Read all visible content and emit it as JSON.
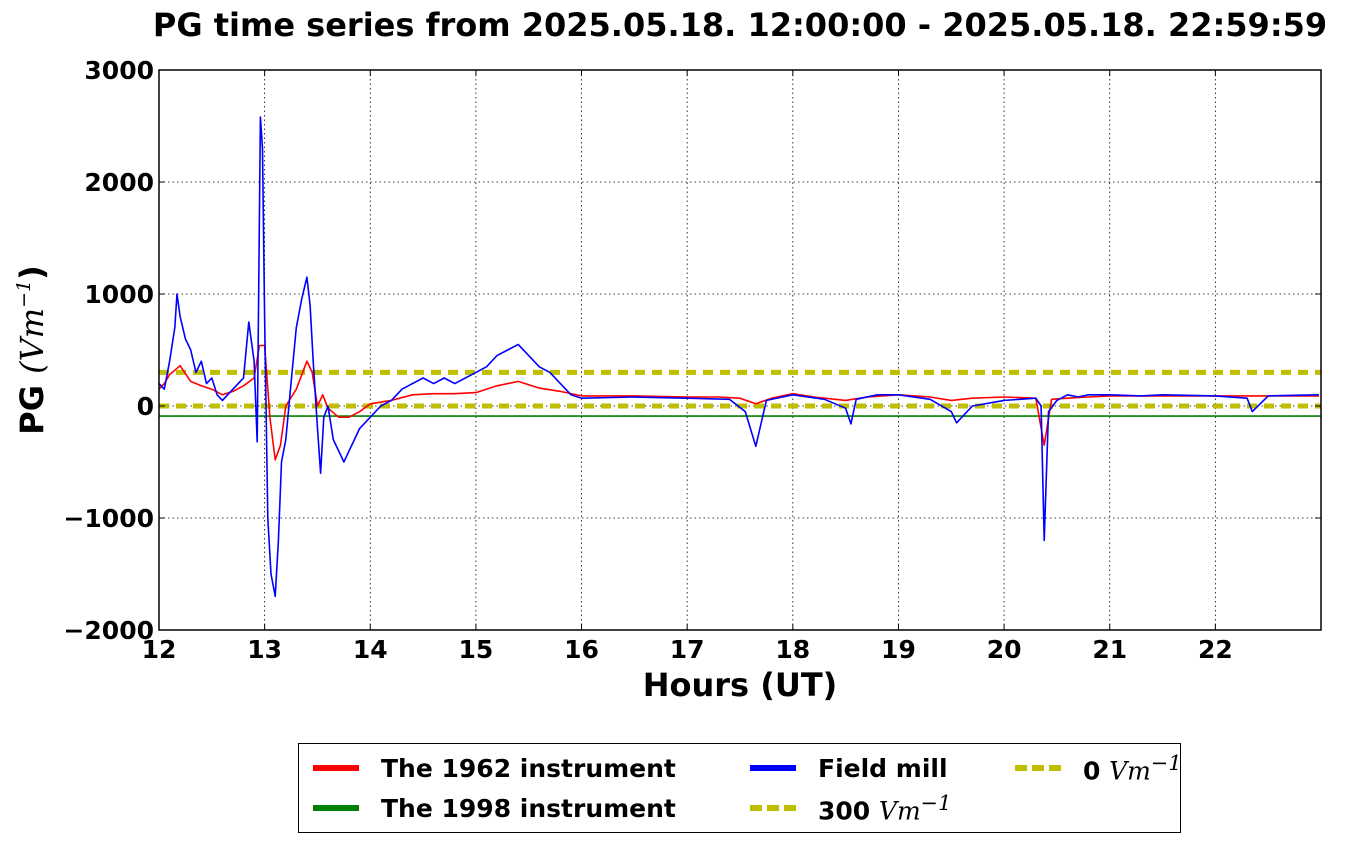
{
  "chart_data": {
    "type": "line",
    "title": "PG time series from 2025.05.18. 12:00:00 - 2025.05.18. 22:59:59",
    "xlabel": "Hours (UT)",
    "ylabel": "PG",
    "ylabel_unit": "(Vm",
    "ylabel_unit_exp": "−1",
    "ylabel_unit_close": ")",
    "xlim": [
      12,
      23
    ],
    "ylim": [
      -2000,
      3000
    ],
    "grid": true,
    "legend_position": "bottom-center-outside",
    "x_ticks": [
      12,
      13,
      14,
      15,
      16,
      17,
      18,
      19,
      20,
      21,
      22
    ],
    "y_ticks": [
      -2000,
      -1000,
      0,
      1000,
      2000,
      3000
    ],
    "y_tick_labels": [
      "−2000",
      "−1000",
      "0",
      "1000",
      "2000",
      "3000"
    ],
    "series": [
      {
        "name": "The 1962 instrument",
        "color": "#ff0000",
        "style": "solid",
        "x": [
          12.0,
          12.05,
          12.1,
          12.15,
          12.2,
          12.3,
          12.4,
          12.5,
          12.6,
          12.7,
          12.8,
          12.9,
          12.95,
          13.0,
          13.05,
          13.1,
          13.15,
          13.2,
          13.3,
          13.4,
          13.45,
          13.5,
          13.55,
          13.6,
          13.7,
          13.8,
          13.9,
          14.0,
          14.2,
          14.4,
          14.6,
          14.8,
          15.0,
          15.2,
          15.4,
          15.6,
          15.8,
          16.0,
          16.5,
          17.0,
          17.3,
          17.5,
          17.65,
          17.8,
          18.0,
          18.2,
          18.5,
          18.7,
          19.0,
          19.3,
          19.5,
          19.7,
          20.0,
          20.3,
          20.38,
          20.45,
          20.6,
          20.8,
          21.0,
          21.5,
          22.0,
          22.5,
          22.98
        ],
        "values": [
          150,
          200,
          280,
          320,
          360,
          220,
          180,
          150,
          100,
          130,
          180,
          250,
          540,
          540,
          -100,
          -480,
          -350,
          0,
          150,
          400,
          300,
          0,
          100,
          -20,
          -100,
          -100,
          -50,
          20,
          50,
          100,
          110,
          110,
          120,
          180,
          220,
          160,
          130,
          90,
          90,
          80,
          80,
          70,
          20,
          70,
          110,
          80,
          50,
          80,
          100,
          80,
          50,
          70,
          80,
          70,
          -350,
          60,
          70,
          80,
          90,
          90,
          90,
          90,
          90
        ]
      },
      {
        "name": "The 1998 instrument",
        "color": "#008000",
        "style": "solid",
        "x": [
          12,
          23
        ],
        "values": [
          -90,
          -90
        ]
      },
      {
        "name": "Field mill",
        "color": "#0000ff",
        "style": "solid",
        "x": [
          12.0,
          12.05,
          12.1,
          12.15,
          12.17,
          12.2,
          12.25,
          12.3,
          12.35,
          12.4,
          12.45,
          12.5,
          12.55,
          12.6,
          12.7,
          12.8,
          12.85,
          12.9,
          12.93,
          12.96,
          12.98,
          13.0,
          13.03,
          13.06,
          13.1,
          13.13,
          13.16,
          13.2,
          13.25,
          13.3,
          13.35,
          13.4,
          13.43,
          13.46,
          13.5,
          13.53,
          13.56,
          13.6,
          13.65,
          13.7,
          13.75,
          13.8,
          13.85,
          13.9,
          14.0,
          14.1,
          14.2,
          14.3,
          14.4,
          14.5,
          14.6,
          14.7,
          14.8,
          15.0,
          15.1,
          15.2,
          15.3,
          15.4,
          15.5,
          15.6,
          15.7,
          15.8,
          15.9,
          16.0,
          16.5,
          17.0,
          17.4,
          17.55,
          17.65,
          17.75,
          18.0,
          18.3,
          18.5,
          18.55,
          18.6,
          18.8,
          19.0,
          19.3,
          19.5,
          19.55,
          19.7,
          20.0,
          20.3,
          20.35,
          20.38,
          20.42,
          20.5,
          20.6,
          20.7,
          20.8,
          21.0,
          21.3,
          21.5,
          22.0,
          22.3,
          22.35,
          22.5,
          22.98
        ],
        "values": [
          200,
          150,
          400,
          700,
          1000,
          800,
          600,
          500,
          300,
          400,
          200,
          250,
          100,
          50,
          150,
          250,
          750,
          400,
          -320,
          2580,
          2300,
          800,
          -1000,
          -1500,
          -1700,
          -1200,
          -500,
          -300,
          200,
          700,
          950,
          1150,
          900,
          400,
          -200,
          -600,
          -100,
          0,
          -300,
          -400,
          -500,
          -400,
          -300,
          -200,
          -100,
          0,
          50,
          150,
          200,
          250,
          200,
          250,
          200,
          300,
          350,
          450,
          500,
          550,
          450,
          350,
          300,
          200,
          100,
          70,
          80,
          70,
          60,
          -50,
          -360,
          50,
          100,
          60,
          -20,
          -160,
          60,
          100,
          100,
          60,
          -50,
          -150,
          0,
          50,
          70,
          0,
          -1200,
          -50,
          50,
          100,
          80,
          100,
          100,
          90,
          100,
          90,
          70,
          -50,
          90,
          100
        ]
      },
      {
        "name": "300 Vm",
        "color": "#bfbf00",
        "style": "dashed",
        "x": [
          12,
          23
        ],
        "values": [
          300,
          300
        ]
      },
      {
        "name": "0 Vm",
        "color": "#bfbf00",
        "style": "dashed",
        "x": [
          12,
          23
        ],
        "values": [
          0,
          0
        ]
      }
    ],
    "legend": [
      {
        "label": "The 1962 instrument",
        "unit": "",
        "exp": ""
      },
      {
        "label": "The 1998 instrument",
        "unit": "",
        "exp": ""
      },
      {
        "label": "Field mill",
        "unit": "",
        "exp": ""
      },
      {
        "label": "300 ",
        "unit": "Vm",
        "exp": "−1"
      },
      {
        "label": "0 ",
        "unit": "Vm",
        "exp": "−1"
      }
    ]
  }
}
